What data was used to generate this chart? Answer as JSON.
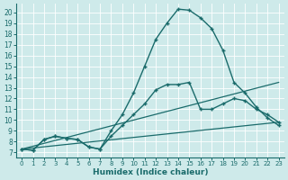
{
  "xlabel": "Humidex (Indice chaleur)",
  "bg_color": "#ceeaea",
  "line_color": "#1a6b6b",
  "xlim": [
    -0.5,
    23.5
  ],
  "ylim": [
    6.5,
    20.8
  ],
  "xticks": [
    0,
    1,
    2,
    3,
    4,
    5,
    6,
    7,
    8,
    9,
    10,
    11,
    12,
    13,
    14,
    15,
    16,
    17,
    18,
    19,
    20,
    21,
    22,
    23
  ],
  "yticks": [
    7,
    8,
    9,
    10,
    11,
    12,
    13,
    14,
    15,
    16,
    17,
    18,
    19,
    20
  ],
  "lines": [
    {
      "x": [
        0,
        1,
        2,
        3,
        4,
        5,
        6,
        7,
        8,
        9,
        10,
        11,
        12,
        13,
        14,
        15,
        16,
        17,
        18,
        19,
        20,
        21,
        22,
        23
      ],
      "y": [
        7.3,
        7.2,
        8.2,
        8.5,
        8.3,
        8.2,
        7.5,
        7.3,
        9.0,
        10.5,
        12.5,
        15.0,
        17.5,
        19.0,
        20.3,
        20.2,
        19.5,
        18.5,
        16.5,
        13.5,
        12.5,
        11.2,
        10.2,
        9.5
      ],
      "marker": true,
      "linewidth": 1.0
    },
    {
      "x": [
        0,
        1,
        2,
        3,
        4,
        5,
        6,
        7,
        8,
        9,
        10,
        11,
        12,
        13,
        14,
        15,
        16,
        17,
        18,
        19,
        20,
        21,
        22,
        23
      ],
      "y": [
        7.3,
        7.2,
        8.2,
        8.5,
        8.3,
        8.2,
        7.5,
        7.3,
        8.5,
        9.5,
        10.5,
        11.5,
        12.8,
        13.3,
        13.3,
        13.5,
        11.0,
        11.0,
        11.5,
        12.0,
        11.8,
        11.0,
        10.5,
        9.8
      ],
      "marker": true,
      "linewidth": 1.0
    },
    {
      "x": [
        0,
        23
      ],
      "y": [
        7.3,
        13.5
      ],
      "marker": false,
      "linewidth": 0.9
    },
    {
      "x": [
        0,
        23
      ],
      "y": [
        7.3,
        9.8
      ],
      "marker": false,
      "linewidth": 0.9
    }
  ]
}
